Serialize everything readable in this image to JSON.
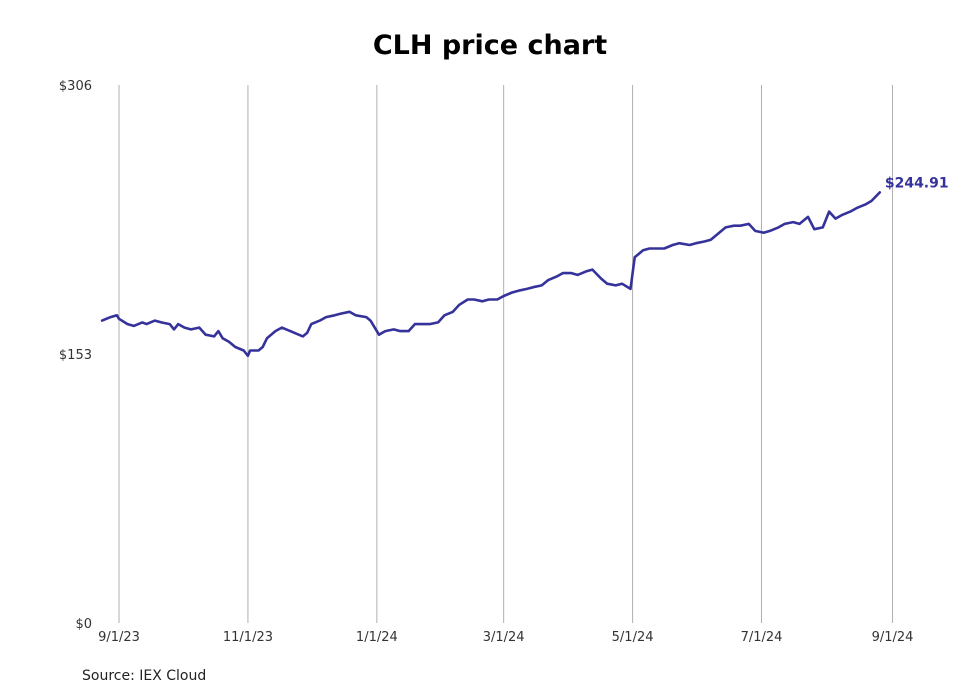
{
  "chart_data": {
    "type": "line",
    "title": "CLH price chart",
    "source": "Source: IEX Cloud",
    "xlabel": "",
    "ylabel": "",
    "x_ticks": [
      {
        "date": "2023-09-01",
        "label": "9/1/23"
      },
      {
        "date": "2023-11-01",
        "label": "11/1/23"
      },
      {
        "date": "2024-01-01",
        "label": "1/1/24"
      },
      {
        "date": "2024-03-01",
        "label": "3/1/24"
      },
      {
        "date": "2024-05-01",
        "label": "5/1/24"
      },
      {
        "date": "2024-07-01",
        "label": "7/1/24"
      },
      {
        "date": "2024-09-01",
        "label": "9/1/24"
      }
    ],
    "y_ticks": [
      {
        "value": 0,
        "label": "$0"
      },
      {
        "value": 153,
        "label": "$153"
      },
      {
        "value": 306,
        "label": "$306"
      }
    ],
    "ylim": [
      0,
      306
    ],
    "xlim": [
      "2023-08-23",
      "2024-09-14"
    ],
    "grid": "vertical",
    "line_color": "#35339b",
    "last_value_label": "$244.91",
    "series": [
      {
        "points": [
          [
            "2023-08-24",
            172
          ],
          [
            "2023-08-28",
            174
          ],
          [
            "2023-08-31",
            175
          ],
          [
            "2023-09-01",
            173
          ],
          [
            "2023-09-05",
            170
          ],
          [
            "2023-09-08",
            169
          ],
          [
            "2023-09-12",
            171
          ],
          [
            "2023-09-14",
            170
          ],
          [
            "2023-09-18",
            172
          ],
          [
            "2023-09-21",
            171
          ],
          [
            "2023-09-25",
            170
          ],
          [
            "2023-09-27",
            167
          ],
          [
            "2023-09-29",
            170
          ],
          [
            "2023-10-02",
            168
          ],
          [
            "2023-10-05",
            167
          ],
          [
            "2023-10-09",
            168
          ],
          [
            "2023-10-12",
            164
          ],
          [
            "2023-10-16",
            163
          ],
          [
            "2023-10-18",
            166
          ],
          [
            "2023-10-20",
            162
          ],
          [
            "2023-10-23",
            160
          ],
          [
            "2023-10-26",
            157
          ],
          [
            "2023-10-30",
            155
          ],
          [
            "2023-11-01",
            152
          ],
          [
            "2023-11-02",
            155
          ],
          [
            "2023-11-06",
            155
          ],
          [
            "2023-11-08",
            157
          ],
          [
            "2023-11-10",
            162
          ],
          [
            "2023-11-14",
            166
          ],
          [
            "2023-11-17",
            168
          ],
          [
            "2023-11-21",
            166
          ],
          [
            "2023-11-27",
            163
          ],
          [
            "2023-11-29",
            165
          ],
          [
            "2023-12-01",
            170
          ],
          [
            "2023-12-05",
            172
          ],
          [
            "2023-12-08",
            174
          ],
          [
            "2023-12-12",
            175
          ],
          [
            "2023-12-15",
            176
          ],
          [
            "2023-12-19",
            177
          ],
          [
            "2023-12-22",
            175
          ],
          [
            "2023-12-27",
            174
          ],
          [
            "2023-12-29",
            172
          ],
          [
            "2024-01-02",
            164
          ],
          [
            "2024-01-05",
            166
          ],
          [
            "2024-01-09",
            167
          ],
          [
            "2024-01-12",
            166
          ],
          [
            "2024-01-16",
            166
          ],
          [
            "2024-01-19",
            170
          ],
          [
            "2024-01-23",
            170
          ],
          [
            "2024-01-26",
            170
          ],
          [
            "2024-01-30",
            171
          ],
          [
            "2024-02-02",
            175
          ],
          [
            "2024-02-06",
            177
          ],
          [
            "2024-02-09",
            181
          ],
          [
            "2024-02-13",
            184
          ],
          [
            "2024-02-16",
            184
          ],
          [
            "2024-02-20",
            183
          ],
          [
            "2024-02-23",
            184
          ],
          [
            "2024-02-27",
            184
          ],
          [
            "2024-03-01",
            186
          ],
          [
            "2024-03-05",
            188
          ],
          [
            "2024-03-08",
            189
          ],
          [
            "2024-03-12",
            190
          ],
          [
            "2024-03-15",
            191
          ],
          [
            "2024-03-19",
            192
          ],
          [
            "2024-03-22",
            195
          ],
          [
            "2024-03-26",
            197
          ],
          [
            "2024-03-29",
            199
          ],
          [
            "2024-04-02",
            199
          ],
          [
            "2024-04-05",
            198
          ],
          [
            "2024-04-09",
            200
          ],
          [
            "2024-04-12",
            201
          ],
          [
            "2024-04-16",
            196
          ],
          [
            "2024-04-19",
            193
          ],
          [
            "2024-04-23",
            192
          ],
          [
            "2024-04-26",
            193
          ],
          [
            "2024-04-30",
            190
          ],
          [
            "2024-05-02",
            208
          ],
          [
            "2024-05-06",
            212
          ],
          [
            "2024-05-09",
            213
          ],
          [
            "2024-05-13",
            213
          ],
          [
            "2024-05-16",
            213
          ],
          [
            "2024-05-20",
            215
          ],
          [
            "2024-05-23",
            216
          ],
          [
            "2024-05-28",
            215
          ],
          [
            "2024-05-31",
            216
          ],
          [
            "2024-06-04",
            217
          ],
          [
            "2024-06-07",
            218
          ],
          [
            "2024-06-11",
            222
          ],
          [
            "2024-06-14",
            225
          ],
          [
            "2024-06-18",
            226
          ],
          [
            "2024-06-21",
            226
          ],
          [
            "2024-06-25",
            227
          ],
          [
            "2024-06-28",
            223
          ],
          [
            "2024-07-02",
            222
          ],
          [
            "2024-07-05",
            223
          ],
          [
            "2024-07-09",
            225
          ],
          [
            "2024-07-12",
            227
          ],
          [
            "2024-07-16",
            228
          ],
          [
            "2024-07-19",
            227
          ],
          [
            "2024-07-23",
            231
          ],
          [
            "2024-07-26",
            224
          ],
          [
            "2024-07-30",
            225
          ],
          [
            "2024-08-02",
            234
          ],
          [
            "2024-08-05",
            230
          ],
          [
            "2024-08-08",
            232
          ],
          [
            "2024-08-12",
            234
          ],
          [
            "2024-08-15",
            236
          ],
          [
            "2024-08-19",
            238
          ],
          [
            "2024-08-22",
            240
          ],
          [
            "2024-08-26",
            244.91
          ]
        ]
      }
    ]
  }
}
